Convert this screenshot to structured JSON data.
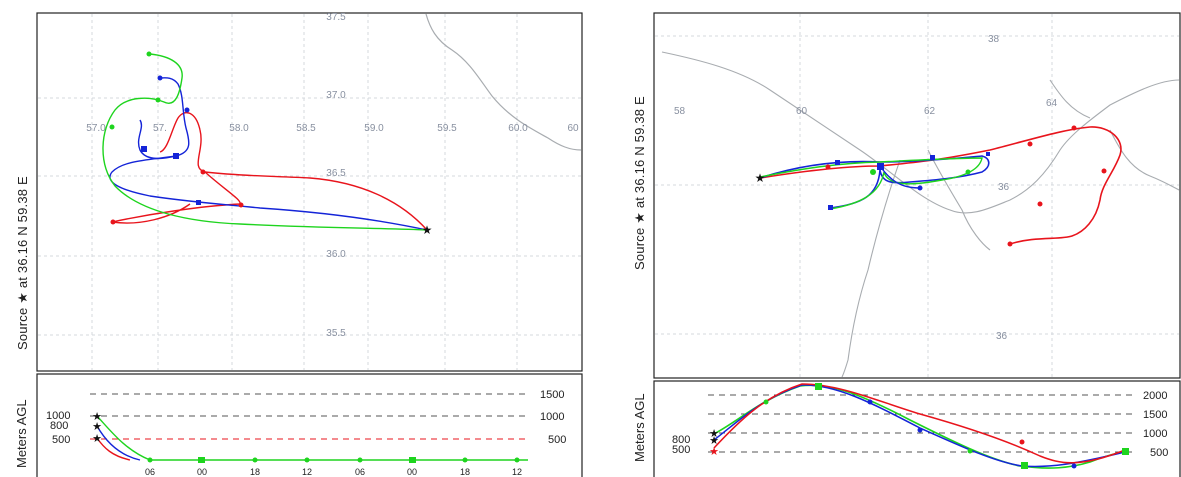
{
  "colors": {
    "red": "#e8141c",
    "blue": "#1424d8",
    "green": "#1ed41e",
    "map": "#a8acb0",
    "grid": "#c8ccd4",
    "frame": "#222222"
  },
  "panels": [
    {
      "source_label": "Source ★  at  36.16 N   59.38 E",
      "height_label": "Meters AGL",
      "lat_labels": [
        "37.5",
        "37.0",
        "36.5",
        "36.0",
        "35.5"
      ],
      "lon_labels": [
        "57.0",
        "57.",
        "58.0",
        "58.5",
        "59.0",
        "59.5",
        "60.0",
        "60"
      ],
      "height_axis": [
        "1500",
        "1000",
        "500"
      ],
      "start_heights": [
        "1000",
        "800",
        "500"
      ],
      "time_ticks": [
        "06",
        "00",
        "18",
        "12",
        "06",
        "00",
        "18",
        "12"
      ]
    },
    {
      "source_label": "Source ★  at  36.16 N   59.38 E",
      "height_label": "Meters AGL",
      "lat_labels": [
        "38",
        "36",
        "36"
      ],
      "lon_labels": [
        "58",
        "60",
        "62",
        "64"
      ],
      "height_axis": [
        "2000",
        "1500",
        "1000",
        "500"
      ],
      "start_heights": [
        "800",
        "500"
      ]
    }
  ],
  "chart_data": [
    {
      "type": "line",
      "title": "",
      "xlabel": "",
      "ylabel": "Meters AGL",
      "ylim": [
        0,
        1500
      ],
      "height_grid": [
        500,
        1000,
        1500
      ],
      "series": [
        {
          "name": "500",
          "color": "red",
          "start_height_m": 500
        },
        {
          "name": "800",
          "color": "blue",
          "start_height_m": 800
        },
        {
          "name": "1000",
          "color": "green",
          "start_height_m": 1000
        }
      ]
    },
    {
      "type": "line",
      "title": "",
      "xlabel": "",
      "ylabel": "Meters AGL",
      "ylim": [
        0,
        2000
      ],
      "height_grid": [
        500,
        1000,
        1500,
        2000
      ],
      "series": [
        {
          "name": "500",
          "color": "red",
          "start_height_m": 500
        },
        {
          "name": "800",
          "color": "blue",
          "start_height_m": 800
        }
      ]
    }
  ]
}
